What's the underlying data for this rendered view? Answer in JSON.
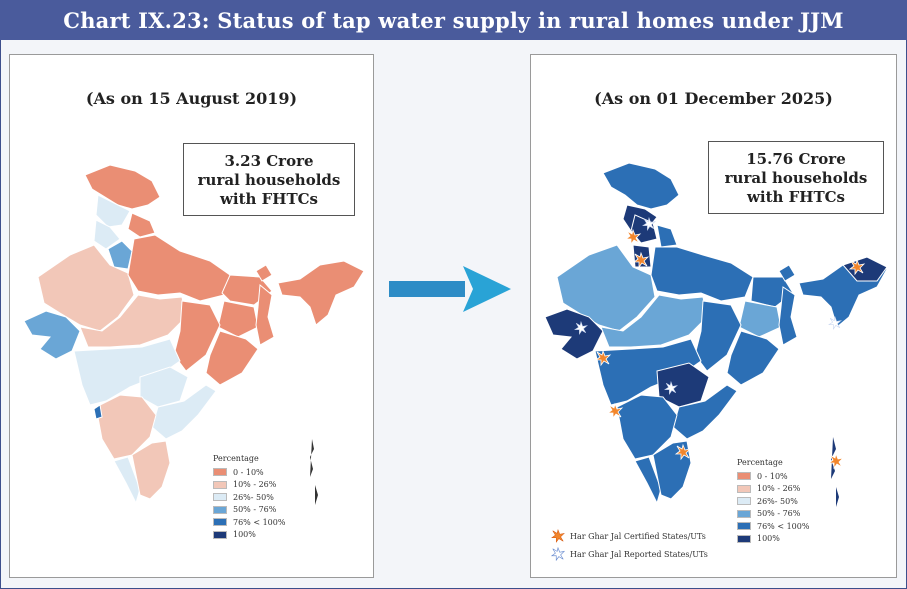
{
  "title": "Chart IX.23: Status of tap water supply in rural homes under JJM",
  "left_panel": {
    "date_label": "(As on 15 August 2019)",
    "stat_lines": [
      "3.23 Crore",
      "rural households",
      "with FHTCs"
    ]
  },
  "right_panel": {
    "date_label": "(As on 01 December 2025)",
    "stat_lines": [
      "15.76 Crore",
      "rural households",
      "with FHTCs"
    ]
  },
  "legend": {
    "title": "Percentage",
    "items": [
      {
        "label": "0 - 10%",
        "color": "#ea8e74"
      },
      {
        "label": "10% - 26%",
        "color": "#f2c7b8"
      },
      {
        "label": "26%- 50%",
        "color": "#dcebf5"
      },
      {
        "label": "50% - 76%",
        "color": "#6aa6d6"
      },
      {
        "label": "76% < 100%",
        "color": "#2c6fb5"
      },
      {
        "label": "100%",
        "color": "#1d3a78"
      }
    ]
  },
  "markers": {
    "certified_label": "Har Ghar Jal Certified States/UTs",
    "reported_label": "Har Ghar Jal Reported States/UTs",
    "certified_icon": "orange-starburst-icon",
    "reported_icon": "white-starburst-icon"
  },
  "arrow_icon": "right-arrow-icon",
  "colors": {
    "title_bar": "#4a5b9c",
    "arrow": "#2d8cc6"
  }
}
